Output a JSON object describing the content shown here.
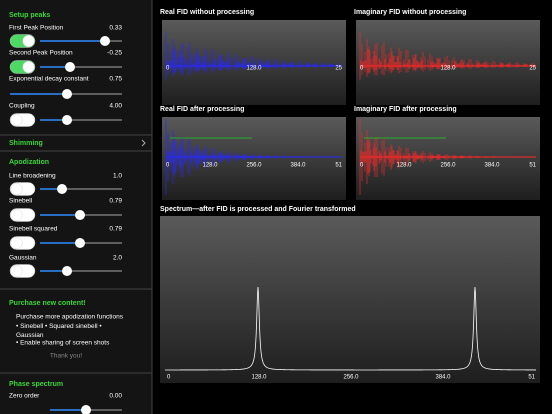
{
  "sidebar": {
    "sections": [
      {
        "title": "Setup peaks",
        "controls": [
          {
            "label": "First Peak Position",
            "value": "0.33"
          },
          {
            "label": "Second Peak Position",
            "value": "-0.25"
          },
          {
            "label": "Exponential decay constant",
            "value": "0.75"
          },
          {
            "label": "Coupling",
            "value": "4.00"
          }
        ]
      },
      {
        "title": "Shimming",
        "controls": []
      },
      {
        "title": "Apodization",
        "controls": [
          {
            "label": "Line broadening",
            "value": "1.0"
          },
          {
            "label": "Sinebell",
            "value": "0.79"
          },
          {
            "label": "Sinebell squared",
            "value": "0.79"
          },
          {
            "label": "Gaussian",
            "value": "2.0"
          }
        ]
      }
    ],
    "purchase": {
      "title": "Purchase new content!",
      "lines": [
        "Purchase more apodization functions",
        "• Sinebell • Squared sinebell • Gaussian",
        "• Enable sharing of screen shots"
      ],
      "thanks": "Thank you!"
    },
    "phase": {
      "title": "Phase spectrum",
      "label": "Zero order",
      "value": "0.00"
    }
  },
  "plots": [
    {
      "title": "Real FID without processing",
      "axis_labels": [
        "0",
        "128.0",
        "25"
      ]
    },
    {
      "title": "Imaginary FID without processing",
      "axis_labels": [
        "0",
        "128.0",
        "25"
      ]
    },
    {
      "title": "Real FID after processing",
      "axis_labels": [
        "0",
        "128.0",
        "256.0",
        "384.0",
        "51"
      ]
    },
    {
      "title": "Imaginary FID after processing",
      "axis_labels": [
        "0",
        "128.0",
        "256.0",
        "384.0",
        "51"
      ]
    }
  ],
  "spectrum": {
    "title": "Spectrum—after FID is processed and Fourier transformed",
    "axis_labels": [
      "0",
      "128.0",
      "256.0",
      "384.0",
      "51"
    ]
  }
}
